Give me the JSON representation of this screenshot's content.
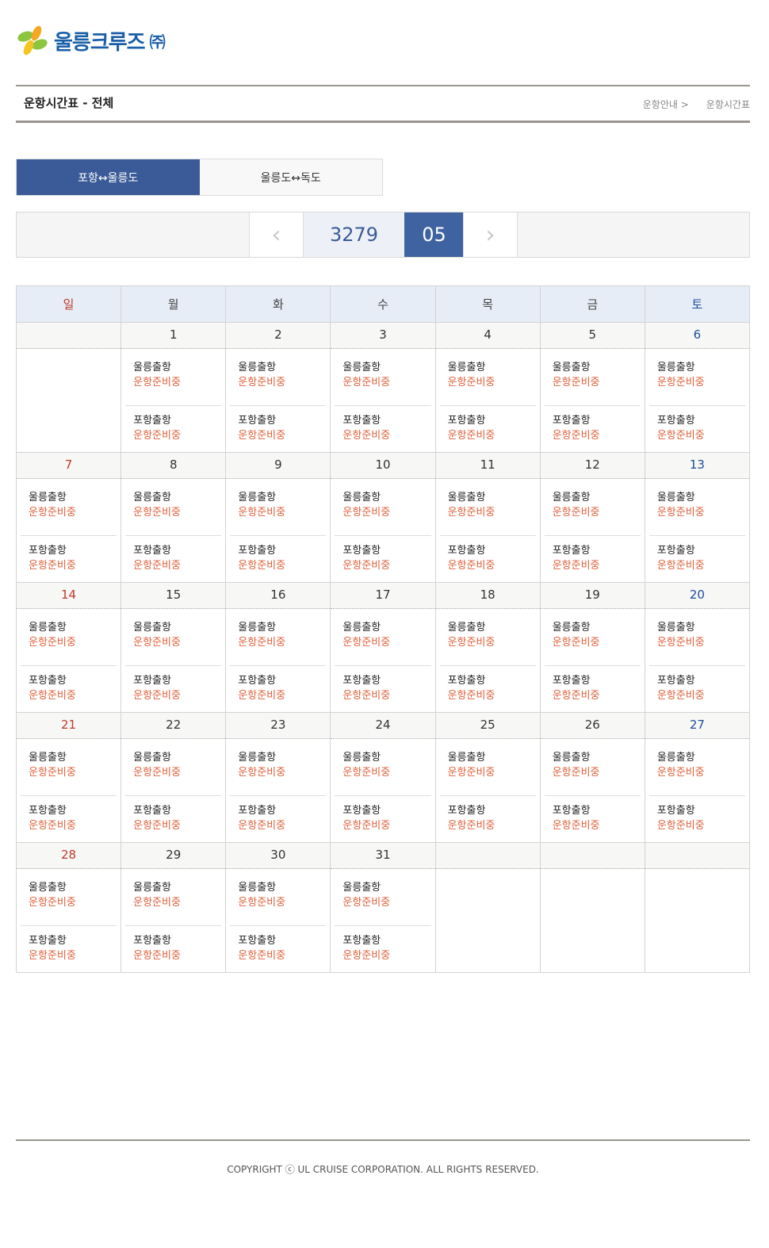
{
  "logo": {
    "text": "울릉크루즈",
    "suffix": "㈜"
  },
  "header": {
    "title": "운항시간표 - 전체",
    "breadcrumb": [
      "운항안내 >",
      "운항시간표"
    ]
  },
  "tabs": [
    {
      "label": "포항↔울릉도",
      "active": true
    },
    {
      "label": "울릉도↔독도",
      "active": false
    }
  ],
  "month_nav": {
    "year": "3279",
    "month": "05",
    "prev_icon": "chevron-left-icon",
    "next_icon": "chevron-right-icon"
  },
  "weekdays": [
    "일",
    "월",
    "화",
    "수",
    "목",
    "금",
    "토"
  ],
  "colors": {
    "sunday": "#c0392b",
    "saturday": "#1d4e9e",
    "status": "#e0603a",
    "accent": "#3f62a0"
  },
  "trip_routes": [
    "울릉출항",
    "포항출항"
  ],
  "weeks": [
    [
      null,
      1,
      2,
      3,
      4,
      5,
      6
    ],
    [
      7,
      8,
      9,
      10,
      11,
      12,
      13
    ],
    [
      14,
      15,
      16,
      17,
      18,
      19,
      20
    ],
    [
      21,
      22,
      23,
      24,
      25,
      26,
      27
    ],
    [
      28,
      29,
      30,
      31,
      null,
      null,
      null
    ]
  ],
  "schedule": {
    "1": [
      "운항준비중",
      "운항준비중"
    ],
    "2": [
      "운항준비중",
      "운항준비중"
    ],
    "3": [
      "운항준비중",
      "운항준비중"
    ],
    "4": [
      "운항준비중",
      "운항준비중"
    ],
    "5": [
      "운항준비중",
      "운항준비중"
    ],
    "6": [
      "운항준비중",
      "운항준비중"
    ],
    "7": [
      "운항준비중",
      "운항준비중"
    ],
    "8": [
      "운항준비중",
      "운항준비중"
    ],
    "9": [
      "운항준비중",
      "운항준비중"
    ],
    "10": [
      "운항준비중",
      "운항준비중"
    ],
    "11": [
      "운항준비중",
      "운항준비중"
    ],
    "12": [
      "운항준비중",
      "운항준비중"
    ],
    "13": [
      "운항준비중",
      "운항준비중"
    ],
    "14": [
      "운항준비중",
      "운항준비중"
    ],
    "15": [
      "운항준비중",
      "운항준비중"
    ],
    "16": [
      "운항준비중",
      "운항준비중"
    ],
    "17": [
      "운항준비중",
      "운항준비중"
    ],
    "18": [
      "운항준비중",
      "운항준비중"
    ],
    "19": [
      "운항준비중",
      "운항준비중"
    ],
    "20": [
      "운항준비중",
      "운항준비중"
    ],
    "21": [
      "운항준비중",
      "운항준비중"
    ],
    "22": [
      "운항준비중",
      "운항준비중"
    ],
    "23": [
      "운항준비중",
      "운항준비중"
    ],
    "24": [
      "운항준비중",
      "운항준비중"
    ],
    "25": [
      "운항준비중",
      "운항준비중"
    ],
    "26": [
      "운항준비중",
      "운항준비중"
    ],
    "27": [
      "운항준비중",
      "운항준비중"
    ],
    "28": [
      "운항준비중",
      "운항준비중"
    ],
    "29": [
      "운항준비중",
      "운항준비중"
    ],
    "30": [
      "운항준비중",
      "운항준비중"
    ],
    "31": [
      "운항준비중",
      "운항준비중"
    ]
  },
  "footer": {
    "copyright": "COPYRIGHT ⓒ UL CRUISE CORPORATION. ALL RIGHTS RESERVED."
  }
}
